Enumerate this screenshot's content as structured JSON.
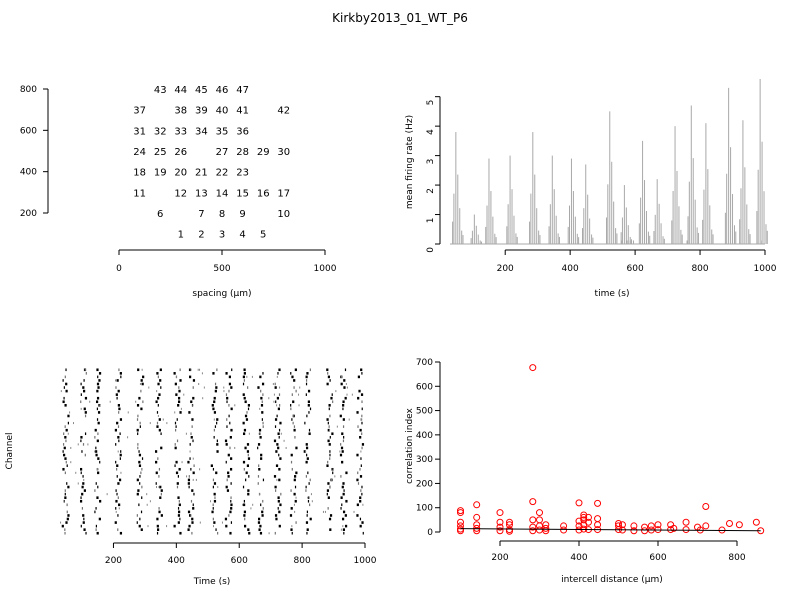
{
  "figure": {
    "title": "Kirkby2013_01_WT_P6"
  },
  "chart_data": [
    {
      "type": "scatter",
      "subtype": "electrode-layout",
      "xlabel": "spacing (µm)",
      "ylabel": "",
      "xlim": [
        0,
        1000
      ],
      "ylim": [
        100,
        800
      ],
      "xticks": [
        0,
        500,
        1000
      ],
      "yticks": [
        200,
        400,
        600,
        800
      ],
      "grid": false,
      "points": [
        {
          "label": "43",
          "x": 200,
          "y": 800
        },
        {
          "label": "44",
          "x": 300,
          "y": 800
        },
        {
          "label": "45",
          "x": 400,
          "y": 800
        },
        {
          "label": "46",
          "x": 500,
          "y": 800
        },
        {
          "label": "47",
          "x": 600,
          "y": 800
        },
        {
          "label": "37",
          "x": 100,
          "y": 700
        },
        {
          "label": "38",
          "x": 300,
          "y": 700
        },
        {
          "label": "39",
          "x": 400,
          "y": 700
        },
        {
          "label": "40",
          "x": 500,
          "y": 700
        },
        {
          "label": "41",
          "x": 600,
          "y": 700
        },
        {
          "label": "42",
          "x": 800,
          "y": 700
        },
        {
          "label": "31",
          "x": 100,
          "y": 600
        },
        {
          "label": "32",
          "x": 200,
          "y": 600
        },
        {
          "label": "33",
          "x": 300,
          "y": 600
        },
        {
          "label": "34",
          "x": 400,
          "y": 600
        },
        {
          "label": "35",
          "x": 500,
          "y": 600
        },
        {
          "label": "36",
          "x": 600,
          "y": 600
        },
        {
          "label": "24",
          "x": 100,
          "y": 500
        },
        {
          "label": "25",
          "x": 200,
          "y": 500
        },
        {
          "label": "26",
          "x": 300,
          "y": 500
        },
        {
          "label": "27",
          "x": 500,
          "y": 500
        },
        {
          "label": "28",
          "x": 600,
          "y": 500
        },
        {
          "label": "29",
          "x": 700,
          "y": 500
        },
        {
          "label": "30",
          "x": 800,
          "y": 500
        },
        {
          "label": "18",
          "x": 100,
          "y": 400
        },
        {
          "label": "19",
          "x": 200,
          "y": 400
        },
        {
          "label": "20",
          "x": 300,
          "y": 400
        },
        {
          "label": "21",
          "x": 400,
          "y": 400
        },
        {
          "label": "22",
          "x": 500,
          "y": 400
        },
        {
          "label": "23",
          "x": 600,
          "y": 400
        },
        {
          "label": "11",
          "x": 100,
          "y": 300
        },
        {
          "label": "12",
          "x": 300,
          "y": 300
        },
        {
          "label": "13",
          "x": 400,
          "y": 300
        },
        {
          "label": "14",
          "x": 500,
          "y": 300
        },
        {
          "label": "15",
          "x": 600,
          "y": 300
        },
        {
          "label": "16",
          "x": 700,
          "y": 300
        },
        {
          "label": "17",
          "x": 800,
          "y": 300
        },
        {
          "label": "6",
          "x": 200,
          "y": 200
        },
        {
          "label": "7",
          "x": 400,
          "y": 200
        },
        {
          "label": "8",
          "x": 500,
          "y": 200
        },
        {
          "label": "9",
          "x": 600,
          "y": 200
        },
        {
          "label": "10",
          "x": 800,
          "y": 200
        },
        {
          "label": "1",
          "x": 300,
          "y": 100
        },
        {
          "label": "2",
          "x": 400,
          "y": 100
        },
        {
          "label": "3",
          "x": 500,
          "y": 100
        },
        {
          "label": "4",
          "x": 600,
          "y": 100
        },
        {
          "label": "5",
          "x": 700,
          "y": 100
        }
      ]
    },
    {
      "type": "bar",
      "subtype": "firing-rate-histogram",
      "xlabel": "time (s)",
      "ylabel": "mean firing rate (Hz)",
      "xlim": [
        30,
        1000
      ],
      "ylim": [
        0,
        5.6
      ],
      "xticks": [
        200,
        400,
        600,
        800,
        1000
      ],
      "yticks": [
        0,
        1,
        2,
        3,
        4,
        5
      ],
      "grid": false,
      "color": "#a8a8a8",
      "bursts": [
        {
          "t": 48,
          "peak": 3.8
        },
        {
          "t": 105,
          "peak": 1.0
        },
        {
          "t": 150,
          "peak": 2.9
        },
        {
          "t": 215,
          "peak": 3.0
        },
        {
          "t": 285,
          "peak": 3.8
        },
        {
          "t": 345,
          "peak": 3.0
        },
        {
          "t": 404,
          "peak": 2.9
        },
        {
          "t": 448,
          "peak": 2.7
        },
        {
          "t": 522,
          "peak": 4.5
        },
        {
          "t": 567,
          "peak": 2.0
        },
        {
          "t": 623,
          "peak": 3.5
        },
        {
          "t": 668,
          "peak": 2.2
        },
        {
          "t": 723,
          "peak": 4.0
        },
        {
          "t": 773,
          "peak": 4.7
        },
        {
          "t": 818,
          "peak": 4.1
        },
        {
          "t": 888,
          "peak": 5.3
        },
        {
          "t": 932,
          "peak": 4.2
        },
        {
          "t": 985,
          "peak": 5.6
        }
      ]
    },
    {
      "type": "scatter",
      "subtype": "spike-raster",
      "xlabel": "Time (s)",
      "ylabel": "Channel",
      "xlim": [
        30,
        1000
      ],
      "xticks": [
        200,
        400,
        600,
        800,
        1000
      ],
      "channels": 47,
      "grid": false,
      "color": "#000000",
      "burst_times": [
        48,
        105,
        150,
        215,
        285,
        345,
        404,
        448,
        522,
        567,
        623,
        668,
        723,
        773,
        818,
        888,
        932,
        985
      ]
    },
    {
      "type": "scatter",
      "subtype": "correlation-vs-distance",
      "xlabel": "intercell distance (µm)",
      "ylabel": "correlation index",
      "xlim": [
        85,
        865
      ],
      "ylim": [
        0,
        720
      ],
      "xticks": [
        200,
        400,
        600,
        800
      ],
      "yticks": [
        0,
        100,
        200,
        300,
        400,
        500,
        600,
        700
      ],
      "grid": false,
      "marker_color": "#ff0000",
      "fit_line": {
        "x": [
          100,
          860
        ],
        "y": [
          14,
          5
        ]
      },
      "distances": [
        100,
        141,
        200,
        224,
        283,
        300,
        316,
        361,
        400,
        412,
        424,
        447,
        500,
        510,
        539,
        566,
        583,
        600,
        632,
        640,
        671,
        700,
        707,
        721,
        762,
        781,
        806,
        849,
        860
      ],
      "x": [
        100,
        100,
        100,
        100,
        100,
        100,
        141,
        141,
        141,
        141,
        141,
        200,
        200,
        200,
        200,
        224,
        224,
        224,
        224,
        283,
        283,
        283,
        283,
        283,
        300,
        300,
        300,
        300,
        316,
        316,
        316,
        361,
        361,
        400,
        400,
        400,
        400,
        412,
        412,
        412,
        412,
        412,
        424,
        424,
        424,
        447,
        447,
        447,
        447,
        500,
        500,
        500,
        510,
        510,
        539,
        539,
        566,
        566,
        583,
        583,
        600,
        600,
        632,
        632,
        640,
        671,
        671,
        700,
        707,
        721,
        721,
        762,
        781,
        806,
        849,
        860
      ],
      "y": [
        88,
        80,
        40,
        25,
        12,
        5,
        112,
        60,
        30,
        15,
        5,
        80,
        40,
        20,
        5,
        40,
        30,
        10,
        3,
        677,
        125,
        50,
        20,
        5,
        80,
        50,
        25,
        8,
        30,
        15,
        5,
        25,
        8,
        120,
        45,
        25,
        8,
        60,
        70,
        50,
        30,
        12,
        60,
        40,
        10,
        118,
        55,
        30,
        10,
        35,
        25,
        10,
        30,
        8,
        25,
        5,
        20,
        5,
        25,
        8,
        30,
        10,
        30,
        10,
        15,
        40,
        10,
        20,
        8,
        105,
        25,
        8,
        35,
        30,
        40,
        5
      ]
    }
  ]
}
